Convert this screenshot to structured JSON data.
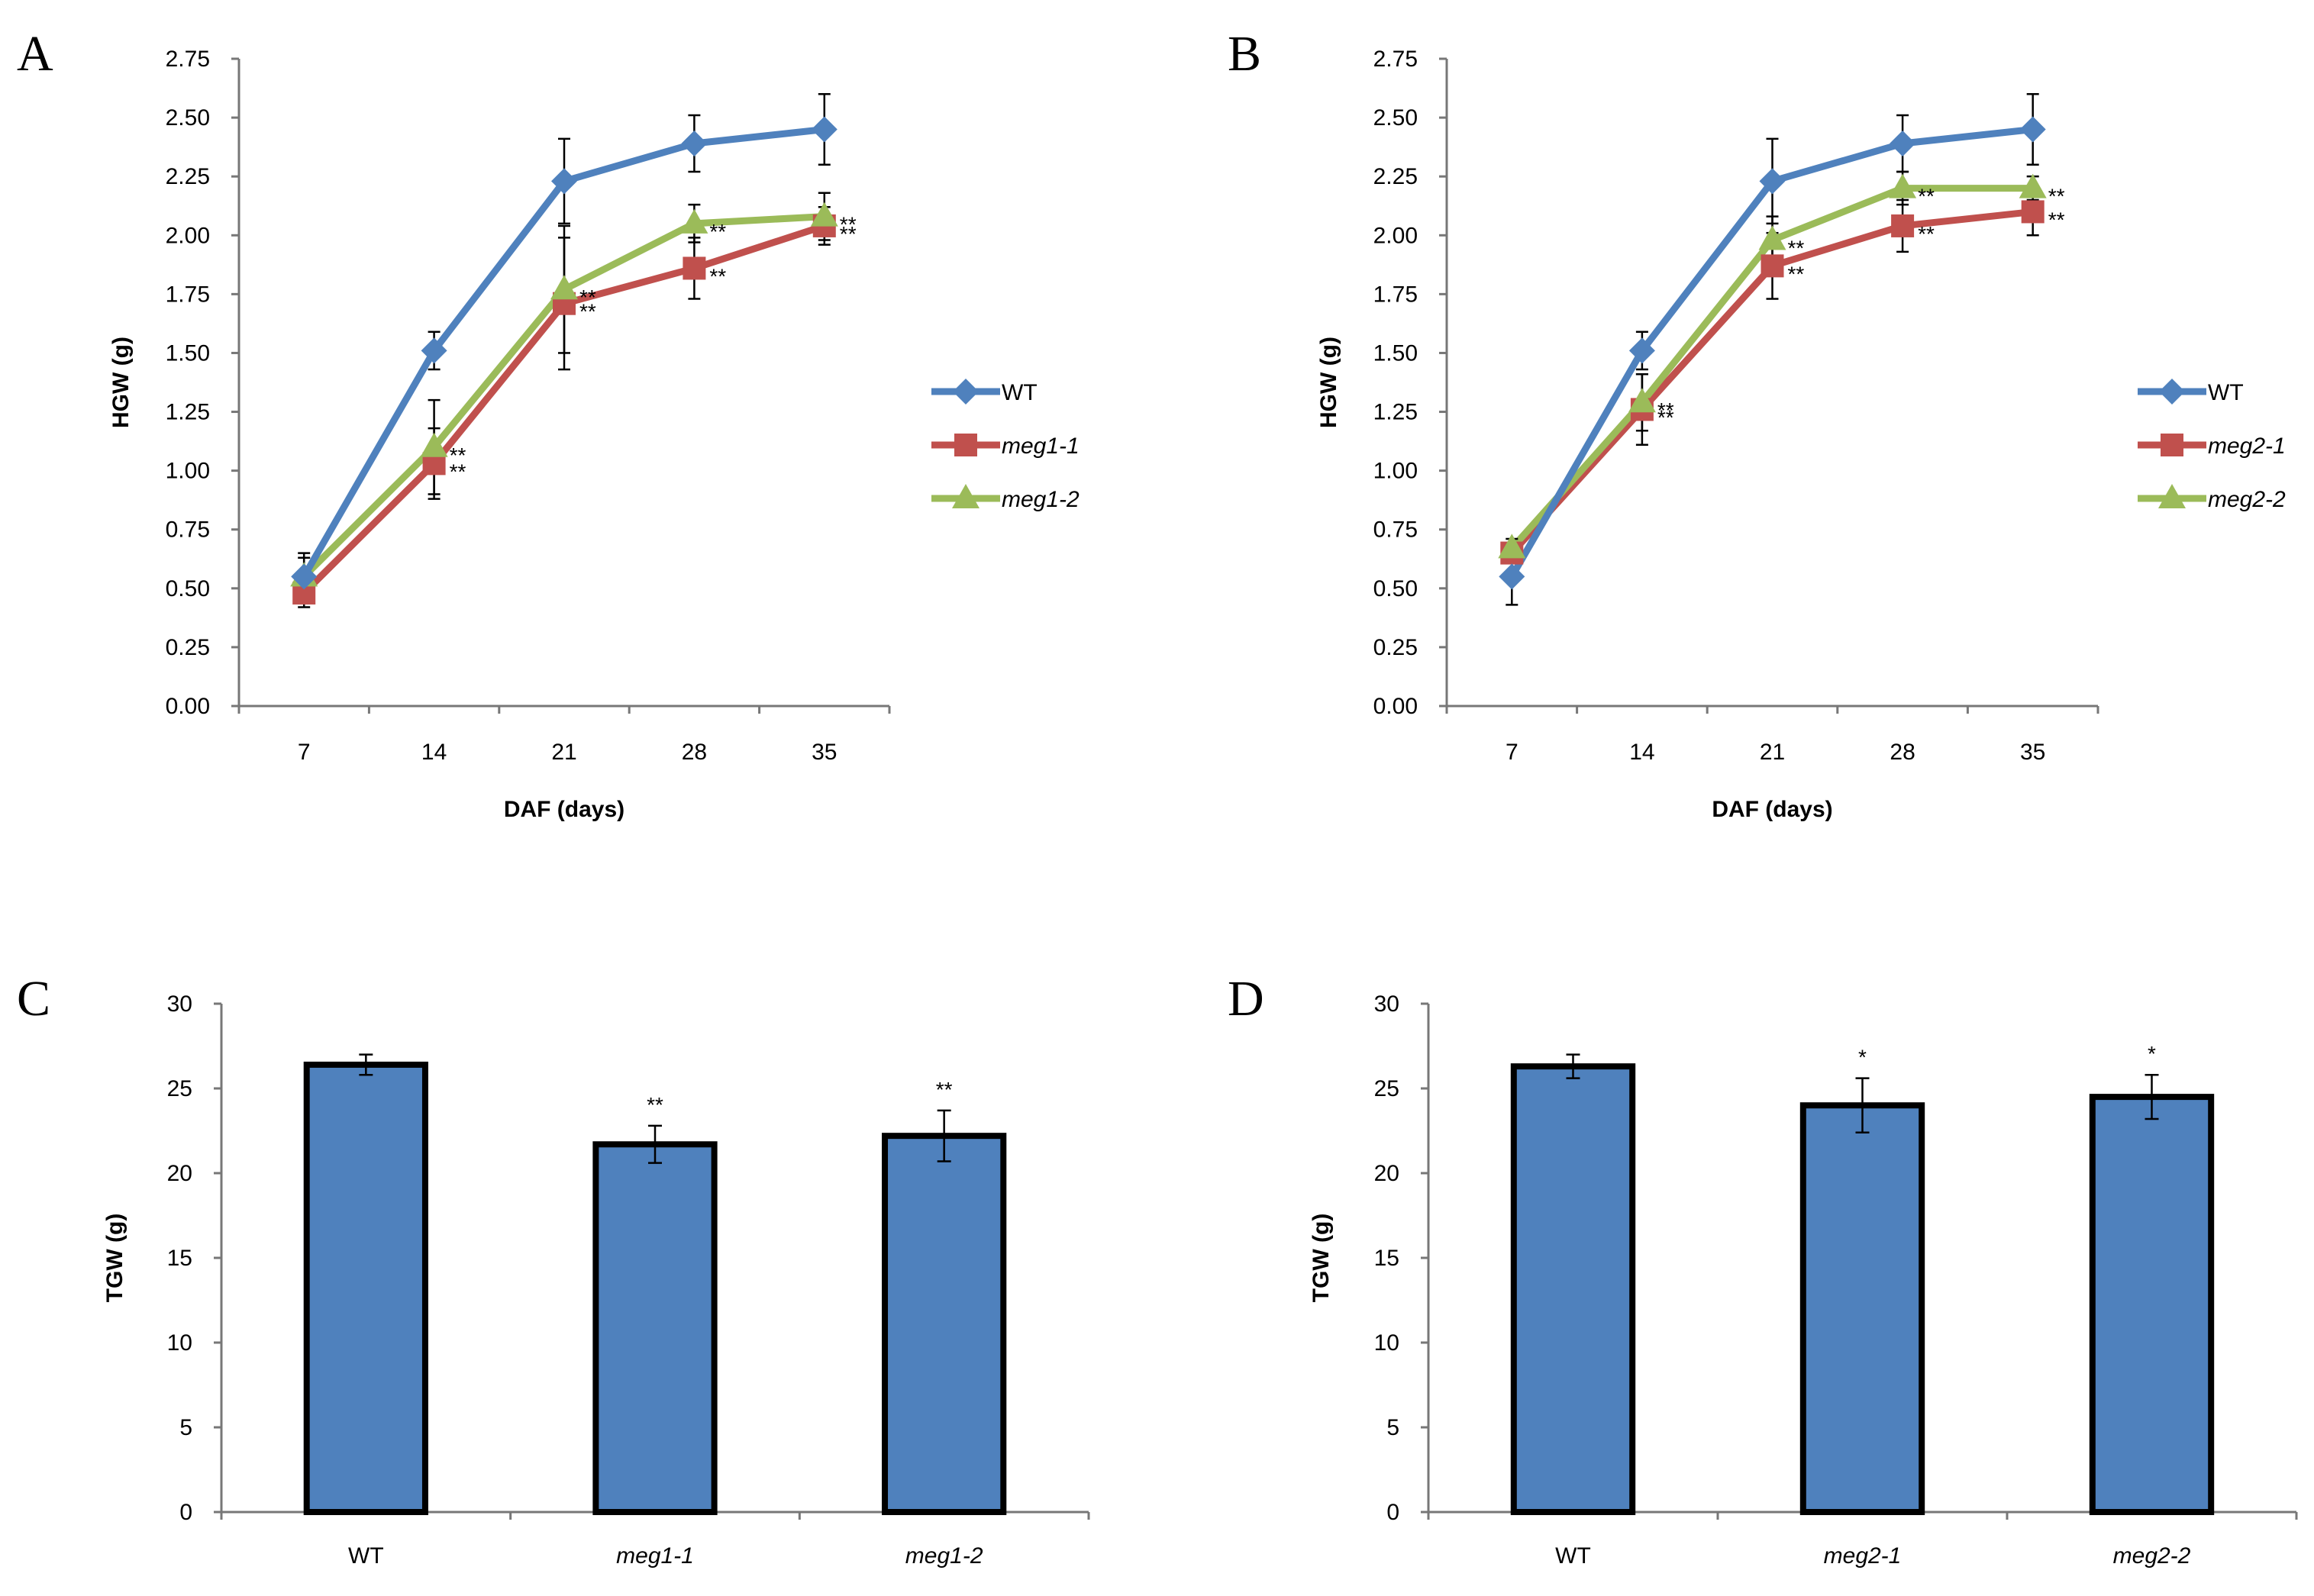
{
  "chart_data": [
    {
      "panel": "A",
      "type": "line",
      "xlabel": "DAF (days)",
      "ylabel": "HGW (g)",
      "ylim": [
        0,
        2.75
      ],
      "yticks": [
        "0.00",
        "0.25",
        "0.50",
        "0.75",
        "1.00",
        "1.25",
        "1.50",
        "1.75",
        "2.00",
        "2.25",
        "2.50",
        "2.75"
      ],
      "categories": [
        "7",
        "14",
        "21",
        "28",
        "35"
      ],
      "series": [
        {
          "name": "WT",
          "italic": false,
          "color": "#4F81BD",
          "marker": "diamond",
          "values": [
            0.55,
            1.51,
            2.23,
            2.39,
            2.45
          ],
          "errors": [
            0.1,
            0.08,
            0.18,
            0.12,
            0.15
          ],
          "sig": [
            "",
            "",
            "",
            "",
            ""
          ]
        },
        {
          "name": "meg1-1",
          "italic": true,
          "color": "#C0504D",
          "marker": "square",
          "values": [
            0.48,
            1.03,
            1.71,
            1.86,
            2.04
          ],
          "errors": [
            0.06,
            0.15,
            0.28,
            0.13,
            0.08
          ],
          "sig": [
            "",
            "**",
            "**",
            "**",
            "**"
          ]
        },
        {
          "name": "meg1-2",
          "italic": true,
          "color": "#9BBB59",
          "marker": "triangle",
          "values": [
            0.55,
            1.1,
            1.77,
            2.05,
            2.08
          ],
          "errors": [
            0.08,
            0.2,
            0.27,
            0.08,
            0.1
          ],
          "sig": [
            "",
            "**",
            "**",
            "**",
            "**"
          ]
        }
      ]
    },
    {
      "panel": "B",
      "type": "line",
      "xlabel": "DAF (days)",
      "ylabel": "HGW (g)",
      "ylim": [
        0,
        2.75
      ],
      "yticks": [
        "0.00",
        "0.25",
        "0.50",
        "0.75",
        "1.00",
        "1.25",
        "1.50",
        "1.75",
        "2.00",
        "2.25",
        "2.50",
        "2.75"
      ],
      "categories": [
        "7",
        "14",
        "21",
        "28",
        "35"
      ],
      "series": [
        {
          "name": "WT",
          "italic": false,
          "color": "#4F81BD",
          "marker": "diamond",
          "values": [
            0.55,
            1.51,
            2.23,
            2.39,
            2.45
          ],
          "errors": [
            0.12,
            0.08,
            0.18,
            0.12,
            0.15
          ],
          "sig": [
            "",
            "",
            "",
            "",
            ""
          ]
        },
        {
          "name": "meg2-1",
          "italic": true,
          "color": "#C0504D",
          "marker": "square",
          "values": [
            0.65,
            1.26,
            1.87,
            2.04,
            2.1
          ],
          "errors": [
            0.04,
            0.15,
            0.14,
            0.11,
            0.1
          ],
          "sig": [
            "",
            "**",
            "**",
            "**",
            "**"
          ]
        },
        {
          "name": "meg2-2",
          "italic": true,
          "color": "#9BBB59",
          "marker": "triangle",
          "values": [
            0.67,
            1.29,
            1.98,
            2.2,
            2.2
          ],
          "errors": [
            0.04,
            0.12,
            0.1,
            0.07,
            0.05
          ],
          "sig": [
            "",
            "**",
            "**",
            "**",
            "**"
          ]
        }
      ]
    },
    {
      "panel": "C",
      "type": "bar",
      "xlabel": "",
      "ylabel": "TGW (g)",
      "ylim": [
        0,
        30
      ],
      "yticks": [
        "0",
        "5",
        "10",
        "15",
        "20",
        "25",
        "30"
      ],
      "categories": [
        "WT",
        "meg1-1",
        "meg1-2"
      ],
      "italic_categories": [
        false,
        true,
        true
      ],
      "color": "#4F81BD",
      "values": [
        26.4,
        21.7,
        22.2
      ],
      "errors": [
        0.6,
        1.1,
        1.5
      ],
      "sig": [
        "",
        "**",
        "**"
      ]
    },
    {
      "panel": "D",
      "type": "bar",
      "xlabel": "",
      "ylabel": "TGW (g)",
      "ylim": [
        0,
        30
      ],
      "yticks": [
        "0",
        "5",
        "10",
        "15",
        "20",
        "25",
        "30"
      ],
      "categories": [
        "WT",
        "meg2-1",
        "meg2-2"
      ],
      "italic_categories": [
        false,
        true,
        true
      ],
      "color": "#4F81BD",
      "values": [
        26.3,
        24.0,
        24.5
      ],
      "errors": [
        0.7,
        1.6,
        1.3
      ],
      "sig": [
        "",
        "*",
        "*"
      ]
    }
  ]
}
